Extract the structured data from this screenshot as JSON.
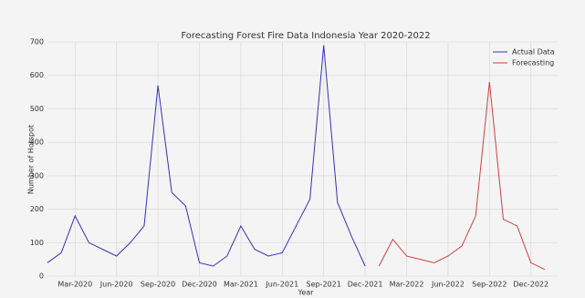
{
  "chart_data": {
    "type": "line",
    "title": "Forecasting Forest Fire Data Indonesia Year 2020-2022",
    "x_label": "Year",
    "y_label": "Number of Hotspot",
    "grid": true,
    "legend": "upper right",
    "xlim": [
      "2020-01",
      "2023-02"
    ],
    "xticks": [
      {
        "value": "2020-03",
        "label": "Mar-2020"
      },
      {
        "value": "2020-06",
        "label": "Jun-2020"
      },
      {
        "value": "2020-09",
        "label": "Sep-2020"
      },
      {
        "value": "2020-12",
        "label": "Dec-2020"
      },
      {
        "value": "2021-03",
        "label": "Mar-2021"
      },
      {
        "value": "2021-06",
        "label": "Jun-2021"
      },
      {
        "value": "2021-09",
        "label": "Sep-2021"
      },
      {
        "value": "2021-12",
        "label": "Dec-2021"
      },
      {
        "value": "2022-03",
        "label": "Mar-2022"
      },
      {
        "value": "2022-06",
        "label": "Jun-2022"
      },
      {
        "value": "2022-09",
        "label": "Sep-2022"
      },
      {
        "value": "2022-12",
        "label": "Dec-2022"
      }
    ],
    "ylim": [
      0,
      700
    ],
    "yticks": [
      0,
      100,
      200,
      300,
      400,
      500,
      600,
      700
    ],
    "series": [
      {
        "name": "Actual Data",
        "color": "#3333bb",
        "x": [
          "2020-01",
          "2020-02",
          "2020-03",
          "2020-04",
          "2020-05",
          "2020-06",
          "2020-07",
          "2020-08",
          "2020-09",
          "2020-10",
          "2020-11",
          "2020-12",
          "2021-01",
          "2021-02",
          "2021-03",
          "2021-04",
          "2021-05",
          "2021-06",
          "2021-07",
          "2021-08",
          "2021-09",
          "2021-10",
          "2021-11",
          "2021-12"
        ],
        "values": [
          40,
          70,
          180,
          100,
          80,
          60,
          100,
          150,
          570,
          250,
          210,
          40,
          30,
          60,
          150,
          80,
          60,
          70,
          150,
          230,
          690,
          220,
          120,
          30
        ]
      },
      {
        "name": "Forecasting",
        "color": "#d04040",
        "x": [
          "2022-01",
          "2022-02",
          "2022-03",
          "2022-04",
          "2022-05",
          "2022-06",
          "2022-07",
          "2022-08",
          "2022-09",
          "2022-10",
          "2022-11",
          "2022-12",
          "2023-01"
        ],
        "values": [
          30,
          110,
          60,
          50,
          40,
          60,
          90,
          180,
          580,
          170,
          150,
          40,
          20
        ]
      }
    ]
  }
}
